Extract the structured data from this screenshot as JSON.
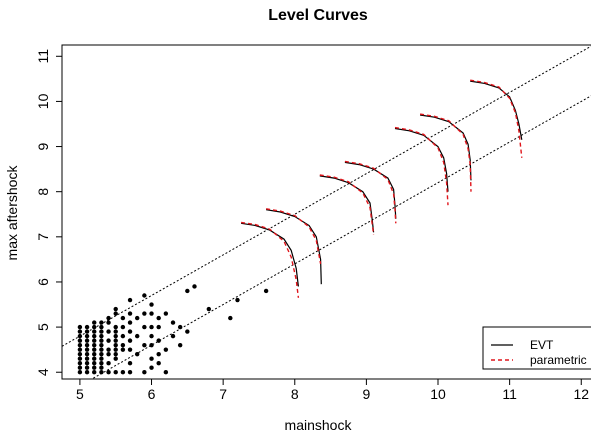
{
  "chart_data": {
    "type": "scatter",
    "title": "Level Curves",
    "xlabel": "mainshock",
    "ylabel": "max aftershock",
    "xlim": [
      4.75,
      12.15
    ],
    "ylim": [
      3.85,
      11.25
    ],
    "xticks": [
      5,
      6,
      7,
      8,
      9,
      10,
      11,
      12
    ],
    "yticks": [
      4,
      5,
      6,
      7,
      8,
      9,
      10,
      11
    ],
    "grid": false,
    "legend": {
      "position": "bottom-right",
      "entries": [
        {
          "label": "EVT",
          "color": "#000000",
          "dash": "solid"
        },
        {
          "label": "parametric",
          "color": "#e0151b",
          "dash": "dashed"
        }
      ]
    },
    "reference_lines": [
      {
        "style": "dotted",
        "color": "#000000",
        "intercept": 0.3,
        "slope": 0.9
      },
      {
        "style": "dotted",
        "color": "#000000",
        "intercept": -0.8,
        "slope": 0.9
      }
    ],
    "points": [
      [
        5.0,
        4.0
      ],
      [
        5.0,
        4.1
      ],
      [
        5.0,
        4.2
      ],
      [
        5.0,
        4.3
      ],
      [
        5.0,
        4.4
      ],
      [
        5.0,
        4.5
      ],
      [
        5.0,
        4.6
      ],
      [
        5.0,
        4.7
      ],
      [
        5.0,
        4.8
      ],
      [
        5.0,
        4.9
      ],
      [
        5.0,
        5.0
      ],
      [
        5.1,
        4.0
      ],
      [
        5.1,
        4.1
      ],
      [
        5.1,
        4.2
      ],
      [
        5.1,
        4.3
      ],
      [
        5.1,
        4.4
      ],
      [
        5.1,
        4.5
      ],
      [
        5.1,
        4.6
      ],
      [
        5.1,
        4.7
      ],
      [
        5.1,
        4.8
      ],
      [
        5.1,
        4.9
      ],
      [
        5.1,
        5.0
      ],
      [
        5.2,
        4.0
      ],
      [
        5.2,
        4.1
      ],
      [
        5.2,
        4.2
      ],
      [
        5.2,
        4.3
      ],
      [
        5.2,
        4.4
      ],
      [
        5.2,
        4.5
      ],
      [
        5.2,
        4.6
      ],
      [
        5.2,
        4.7
      ],
      [
        5.2,
        4.8
      ],
      [
        5.2,
        4.9
      ],
      [
        5.2,
        5.0
      ],
      [
        5.2,
        5.1
      ],
      [
        5.3,
        4.0
      ],
      [
        5.3,
        4.1
      ],
      [
        5.3,
        4.2
      ],
      [
        5.3,
        4.3
      ],
      [
        5.3,
        4.4
      ],
      [
        5.3,
        4.5
      ],
      [
        5.3,
        4.6
      ],
      [
        5.3,
        4.7
      ],
      [
        5.3,
        4.8
      ],
      [
        5.3,
        4.9
      ],
      [
        5.3,
        5.0
      ],
      [
        5.3,
        5.1
      ],
      [
        5.4,
        4.0
      ],
      [
        5.4,
        4.2
      ],
      [
        5.4,
        4.4
      ],
      [
        5.4,
        4.5
      ],
      [
        5.4,
        4.7
      ],
      [
        5.4,
        4.9
      ],
      [
        5.4,
        5.1
      ],
      [
        5.4,
        5.2
      ],
      [
        5.5,
        4.0
      ],
      [
        5.5,
        4.3
      ],
      [
        5.5,
        4.4
      ],
      [
        5.5,
        4.5
      ],
      [
        5.5,
        4.6
      ],
      [
        5.5,
        4.7
      ],
      [
        5.5,
        4.8
      ],
      [
        5.5,
        4.9
      ],
      [
        5.5,
        5.0
      ],
      [
        5.5,
        5.3
      ],
      [
        5.5,
        5.4
      ],
      [
        5.6,
        4.0
      ],
      [
        5.6,
        4.5
      ],
      [
        5.6,
        4.6
      ],
      [
        5.6,
        4.8
      ],
      [
        5.6,
        5.0
      ],
      [
        5.6,
        5.2
      ],
      [
        5.7,
        4.0
      ],
      [
        5.7,
        4.2
      ],
      [
        5.7,
        4.5
      ],
      [
        5.7,
        4.7
      ],
      [
        5.7,
        4.9
      ],
      [
        5.7,
        5.1
      ],
      [
        5.7,
        5.3
      ],
      [
        5.7,
        5.6
      ],
      [
        5.8,
        4.4
      ],
      [
        5.8,
        4.8
      ],
      [
        5.8,
        5.2
      ],
      [
        5.9,
        4.0
      ],
      [
        5.9,
        4.6
      ],
      [
        5.9,
        5.0
      ],
      [
        5.9,
        5.3
      ],
      [
        5.9,
        5.7
      ],
      [
        6.0,
        4.1
      ],
      [
        6.0,
        4.3
      ],
      [
        6.0,
        4.6
      ],
      [
        6.0,
        4.8
      ],
      [
        6.0,
        5.0
      ],
      [
        6.0,
        5.3
      ],
      [
        6.0,
        5.5
      ],
      [
        6.1,
        4.2
      ],
      [
        6.1,
        4.4
      ],
      [
        6.1,
        4.7
      ],
      [
        6.1,
        5.0
      ],
      [
        6.1,
        5.2
      ],
      [
        6.2,
        4.0
      ],
      [
        6.2,
        4.5
      ],
      [
        6.2,
        5.3
      ],
      [
        6.3,
        4.8
      ],
      [
        6.3,
        5.1
      ],
      [
        6.4,
        4.6
      ],
      [
        6.4,
        5.0
      ],
      [
        6.5,
        4.9
      ],
      [
        6.5,
        5.8
      ],
      [
        6.6,
        5.9
      ],
      [
        6.8,
        5.4
      ],
      [
        7.1,
        5.2
      ],
      [
        7.2,
        5.6
      ],
      [
        7.6,
        5.8
      ]
    ],
    "level_curves": [
      {
        "evt": [
          [
            7.25,
            7.3
          ],
          [
            7.45,
            7.25
          ],
          [
            7.65,
            7.15
          ],
          [
            7.85,
            6.95
          ],
          [
            7.95,
            6.7
          ],
          [
            8.02,
            6.3
          ],
          [
            8.05,
            5.9
          ]
        ],
        "parametric": [
          [
            7.25,
            7.32
          ],
          [
            7.45,
            7.27
          ],
          [
            7.65,
            7.17
          ],
          [
            7.85,
            6.9
          ],
          [
            7.95,
            6.55
          ],
          [
            8.02,
            6.05
          ],
          [
            8.05,
            5.65
          ]
        ]
      },
      {
        "evt": [
          [
            7.6,
            7.6
          ],
          [
            7.8,
            7.55
          ],
          [
            8.0,
            7.45
          ],
          [
            8.2,
            7.25
          ],
          [
            8.3,
            7.0
          ],
          [
            8.36,
            6.5
          ],
          [
            8.37,
            5.95
          ]
        ],
        "parametric": [
          [
            7.6,
            7.62
          ],
          [
            7.8,
            7.57
          ],
          [
            8.0,
            7.47
          ],
          [
            8.2,
            7.22
          ],
          [
            8.3,
            6.92
          ],
          [
            8.36,
            6.4
          ]
        ]
      },
      {
        "evt": [
          [
            8.35,
            8.35
          ],
          [
            8.55,
            8.3
          ],
          [
            8.75,
            8.2
          ],
          [
            8.95,
            8.0
          ],
          [
            9.05,
            7.75
          ],
          [
            9.08,
            7.4
          ],
          [
            9.1,
            7.1
          ]
        ],
        "parametric": [
          [
            8.35,
            8.37
          ],
          [
            8.55,
            8.32
          ],
          [
            8.75,
            8.22
          ],
          [
            8.95,
            7.97
          ],
          [
            9.05,
            7.65
          ],
          [
            9.08,
            7.3
          ],
          [
            9.1,
            7.05
          ]
        ]
      },
      {
        "evt": [
          [
            8.7,
            8.65
          ],
          [
            8.9,
            8.6
          ],
          [
            9.1,
            8.5
          ],
          [
            9.3,
            8.3
          ],
          [
            9.38,
            8.05
          ],
          [
            9.4,
            7.7
          ],
          [
            9.41,
            7.4
          ]
        ],
        "parametric": [
          [
            8.7,
            8.67
          ],
          [
            8.9,
            8.62
          ],
          [
            9.1,
            8.52
          ],
          [
            9.3,
            8.27
          ],
          [
            9.38,
            7.95
          ],
          [
            9.4,
            7.6
          ],
          [
            9.41,
            7.3
          ]
        ]
      },
      {
        "evt": [
          [
            9.4,
            9.4
          ],
          [
            9.6,
            9.35
          ],
          [
            9.8,
            9.25
          ],
          [
            10.0,
            9.0
          ],
          [
            10.08,
            8.75
          ],
          [
            10.12,
            8.4
          ],
          [
            10.14,
            8.0
          ]
        ],
        "parametric": [
          [
            9.4,
            9.42
          ],
          [
            9.6,
            9.37
          ],
          [
            9.8,
            9.27
          ],
          [
            10.0,
            8.97
          ],
          [
            10.08,
            8.65
          ],
          [
            10.12,
            8.2
          ],
          [
            10.14,
            7.7
          ]
        ]
      },
      {
        "evt": [
          [
            9.75,
            9.7
          ],
          [
            9.95,
            9.65
          ],
          [
            10.15,
            9.55
          ],
          [
            10.35,
            9.3
          ],
          [
            10.42,
            9.05
          ],
          [
            10.45,
            8.7
          ],
          [
            10.46,
            8.25
          ]
        ],
        "parametric": [
          [
            9.75,
            9.72
          ],
          [
            9.95,
            9.67
          ],
          [
            10.15,
            9.57
          ],
          [
            10.35,
            9.27
          ],
          [
            10.42,
            8.95
          ],
          [
            10.45,
            8.6
          ],
          [
            10.46,
            8.0
          ]
        ]
      },
      {
        "evt": [
          [
            10.45,
            10.45
          ],
          [
            10.65,
            10.4
          ],
          [
            10.85,
            10.3
          ],
          [
            11.0,
            10.1
          ],
          [
            11.08,
            9.8
          ],
          [
            11.13,
            9.5
          ],
          [
            11.17,
            9.15
          ]
        ],
        "parametric": [
          [
            10.45,
            10.47
          ],
          [
            10.65,
            10.42
          ],
          [
            10.85,
            10.32
          ],
          [
            11.0,
            10.07
          ],
          [
            11.08,
            9.75
          ],
          [
            11.13,
            9.35
          ],
          [
            11.17,
            8.75
          ]
        ]
      }
    ]
  }
}
